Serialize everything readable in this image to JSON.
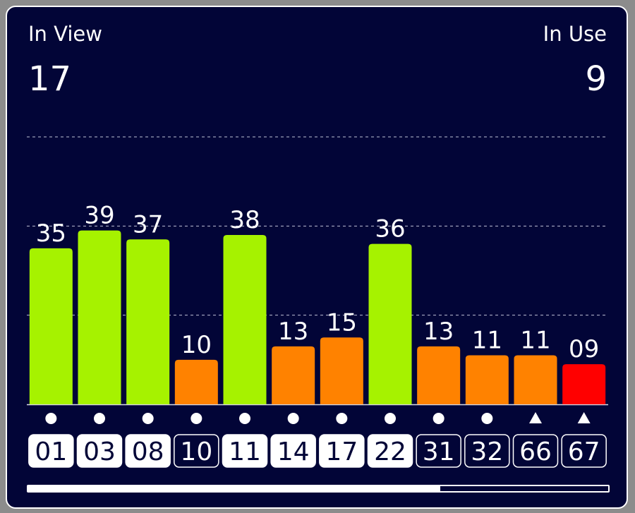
{
  "header": {
    "in_view_label": "In View",
    "in_view_value": "17",
    "in_use_label": "In Use",
    "in_use_value": "9"
  },
  "colors": {
    "background": "#020537",
    "strong": "#a6f200",
    "medium": "#ff8200",
    "weak": "#ff0000",
    "used_badge_bg": "#ffffff",
    "unused_badge_bg": "#020537"
  },
  "chart_data": {
    "type": "bar",
    "categories": [
      "01",
      "03",
      "08",
      "10",
      "11",
      "14",
      "17",
      "22",
      "31",
      "32",
      "66",
      "67"
    ],
    "values": [
      35,
      39,
      37,
      10,
      38,
      13,
      15,
      36,
      13,
      11,
      11,
      9
    ],
    "value_labels": [
      "35",
      "39",
      "37",
      "10",
      "38",
      "13",
      "15",
      "36",
      "13",
      "11",
      "11",
      "09"
    ],
    "levels": [
      "strong",
      "strong",
      "strong",
      "medium",
      "strong",
      "medium",
      "medium",
      "strong",
      "medium",
      "medium",
      "medium",
      "weak"
    ],
    "in_use": [
      true,
      true,
      true,
      false,
      true,
      true,
      true,
      true,
      false,
      false,
      false,
      false
    ],
    "markers": [
      "circle",
      "circle",
      "circle",
      "circle",
      "circle",
      "circle",
      "circle",
      "circle",
      "circle",
      "circle",
      "triangle",
      "triangle"
    ],
    "ylim": [
      0,
      60
    ],
    "gridlines": [
      20,
      40,
      60
    ],
    "grid": true
  },
  "scrollbar": {
    "position": 0.71
  }
}
